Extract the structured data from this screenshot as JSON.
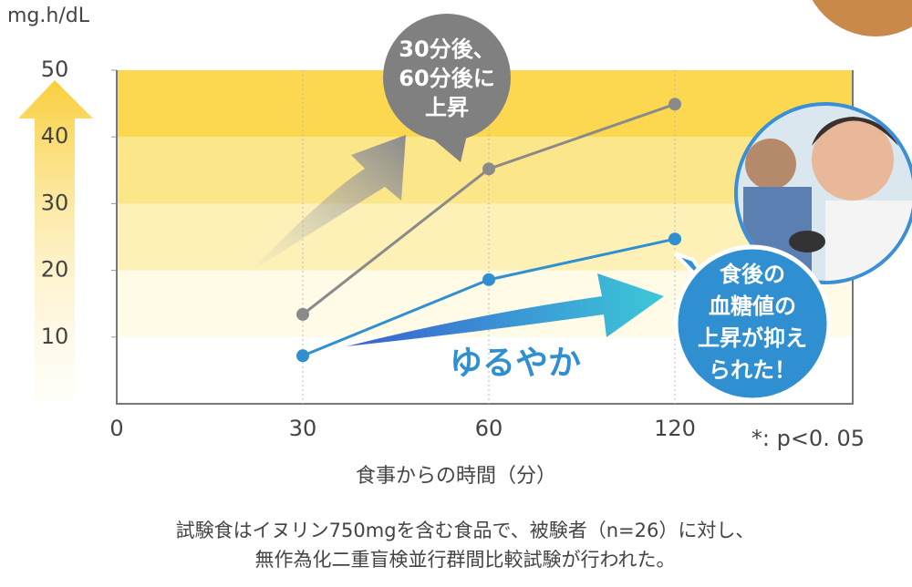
{
  "chart_data": {
    "type": "line",
    "ylabel": "mg.h/dL",
    "xlabel": "食事からの時間（分）",
    "categories": [
      "0",
      "30",
      "60",
      "120"
    ],
    "series": [
      {
        "color": "#8a8a8a",
        "values": [
          null,
          13.4,
          35.2,
          44.9
        ]
      },
      {
        "color": "#2f8fd0",
        "values": [
          null,
          7.2,
          18.6,
          24.7
        ]
      }
    ],
    "ylim": [
      0,
      50
    ],
    "yticks": [
      10,
      20,
      30,
      40,
      50
    ],
    "significance_note": "*: p<0. 05",
    "callout_gray": [
      "30分後、",
      "60分後に",
      "上昇"
    ],
    "callout_blue": [
      "食後の",
      "血糖値の",
      "上昇が抑え",
      "られた！"
    ],
    "arrow_label": "ゆるやか",
    "footnote": [
      "試験食はイヌリン750mgを含む食品で、被験者（n=26）に対し、",
      "無作為化二重盲検並行群間比較試験が行われた。"
    ]
  }
}
